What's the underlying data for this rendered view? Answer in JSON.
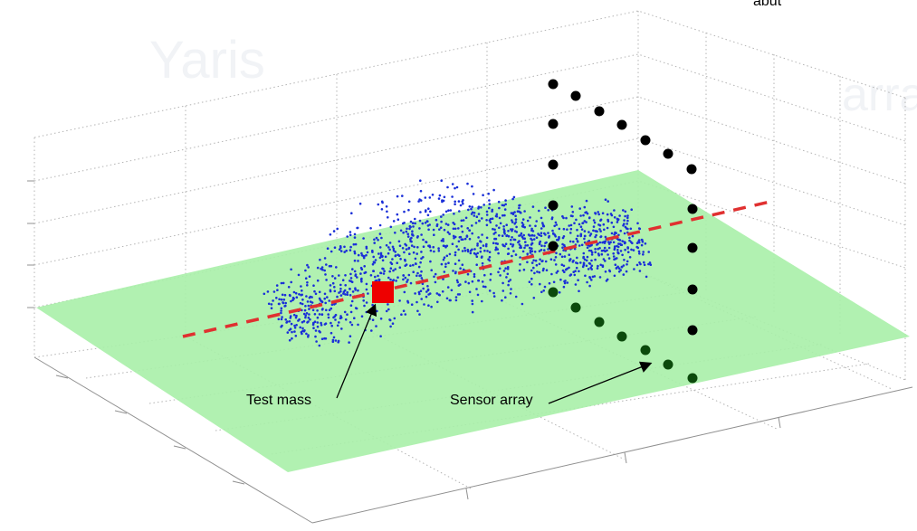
{
  "labels": {
    "test_mass": "Test mass",
    "sensor_array": "Sensor array",
    "top_right_fragment": "abut"
  },
  "colors": {
    "plane": "#a8f0a8",
    "point_cloud": "#1a2fd8",
    "axis_line": "#e03030",
    "test_mass": "#ee0000",
    "sensors_upper": "#000000",
    "sensors_lower": "#0c4a0c",
    "annotation_arrow": "#000000"
  },
  "diagram": {
    "point_cloud_count": 1400,
    "sensor_vertical_count": 6,
    "sensor_horizontal_count": 8
  }
}
